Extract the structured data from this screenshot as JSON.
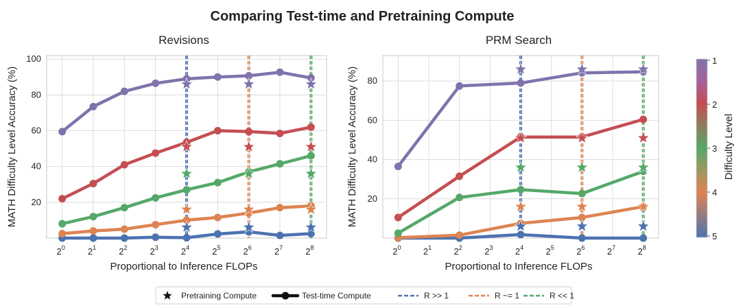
{
  "title": "Comparing Test-time and Pretraining Compute",
  "colors": {
    "d1": "#8073ac",
    "d2": "#c44e52",
    "d3": "#55a868",
    "d4": "#dd8452",
    "d5": "#4c72b0",
    "r_gg1": "#4c72b0",
    "r_eq1": "#dd8452",
    "r_ll1": "#55a868",
    "grid": "#dcdcdc",
    "frame": "#c8c8c8"
  },
  "chart_data": [
    {
      "type": "line",
      "title": "Revisions",
      "xlabel": "Proportional to Inference FLOPs",
      "ylabel": "MATH Difficulty Level Accuracy (%)",
      "x": [
        0,
        1,
        2,
        3,
        4,
        5,
        6,
        7,
        8
      ],
      "x_tick_base": "2",
      "x_tick_exponents": [
        "0",
        "1",
        "2",
        "3",
        "4",
        "5",
        "6",
        "7",
        "8"
      ],
      "xlim": [
        -0.5,
        8.5
      ],
      "ylim": [
        0,
        102
      ],
      "yticks": [
        20,
        40,
        60,
        80,
        100
      ],
      "grid": true,
      "series": [
        {
          "level": 1,
          "color_key": "d1",
          "values": [
            59.5,
            73.5,
            82,
            86.5,
            89,
            90,
            90.7,
            92.7,
            89.5
          ]
        },
        {
          "level": 2,
          "color_key": "d2",
          "values": [
            22,
            30.5,
            41,
            47.5,
            53.5,
            60,
            59.5,
            58.5,
            62
          ]
        },
        {
          "level": 3,
          "color_key": "d3",
          "values": [
            8,
            12,
            17,
            22.5,
            27,
            31,
            37,
            41.5,
            46
          ]
        },
        {
          "level": 4,
          "color_key": "d4",
          "values": [
            2.5,
            4,
            5,
            7.5,
            10,
            11.5,
            14,
            17,
            18
          ]
        },
        {
          "level": 5,
          "color_key": "d5",
          "values": [
            0,
            0,
            0,
            0.5,
            0.2,
            2.3,
            3.5,
            1.5,
            2.5
          ]
        }
      ],
      "pretraining_markers": [
        {
          "x": 4,
          "ratio": "r_gg1",
          "values": [
            86,
            51,
            36,
            16,
            6
          ]
        },
        {
          "x": 6,
          "ratio": "r_eq1",
          "values": [
            86,
            51,
            36,
            16,
            6
          ]
        },
        {
          "x": 8,
          "ratio": "r_ll1",
          "values": [
            86,
            51,
            36,
            16,
            6
          ]
        }
      ],
      "vlines": [
        {
          "x": 4,
          "ratio": "r_gg1"
        },
        {
          "x": 6,
          "ratio": "r_eq1"
        },
        {
          "x": 8,
          "ratio": "r_ll1"
        }
      ]
    },
    {
      "type": "line",
      "title": "PRM Search",
      "xlabel": "Proportional to Inference FLOPs",
      "ylabel": "MATH Difficulty Level Accuracy (%)",
      "x": [
        0,
        2,
        4,
        6,
        8
      ],
      "x_tick_base": "2",
      "x_tick_exponents": [
        "0",
        "1",
        "2",
        "3",
        "4",
        "5",
        "6",
        "7",
        "8"
      ],
      "xlim": [
        -0.5,
        8.5
      ],
      "ylim": [
        0,
        93
      ],
      "yticks": [
        20,
        40,
        60,
        80
      ],
      "grid": true,
      "series": [
        {
          "level": 1,
          "color_key": "d1",
          "values": [
            36.5,
            77.5,
            79,
            84.2,
            84.7
          ]
        },
        {
          "level": 2,
          "color_key": "d2",
          "values": [
            10.5,
            31.5,
            51.5,
            51.5,
            60.5
          ]
        },
        {
          "level": 3,
          "color_key": "d3",
          "values": [
            2.5,
            20.7,
            24.7,
            22.7,
            34
          ]
        },
        {
          "level": 4,
          "color_key": "d4",
          "values": [
            0.2,
            1.5,
            7.5,
            10.5,
            16
          ]
        },
        {
          "level": 5,
          "color_key": "d5",
          "values": [
            0,
            0,
            1.8,
            0,
            0
          ]
        }
      ],
      "pretraining_markers": [
        {
          "x": 4,
          "ratio": "r_gg1",
          "values": [
            86,
            51,
            36,
            16,
            6
          ]
        },
        {
          "x": 6,
          "ratio": "r_eq1",
          "values": [
            86,
            51,
            36,
            16,
            6
          ]
        },
        {
          "x": 8,
          "ratio": "r_ll1",
          "values": [
            86,
            51,
            36,
            16,
            6
          ]
        }
      ],
      "vlines": [
        {
          "x": 4,
          "ratio": "r_gg1"
        },
        {
          "x": 6,
          "ratio": "r_eq1"
        },
        {
          "x": 8,
          "ratio": "r_ll1"
        }
      ]
    }
  ],
  "colorbar": {
    "label": "Difficulty Level",
    "ticks": [
      "1",
      "2",
      "3",
      "4",
      "5"
    ],
    "gradient": [
      "#8073ac",
      "#a5619a",
      "#c44e52",
      "#8c7c5d",
      "#55a868",
      "#9e9760",
      "#dd8452",
      "#957b81",
      "#4c72b0"
    ]
  },
  "legend": {
    "items": [
      {
        "label": "Pretraining Compute",
        "kind": "star"
      },
      {
        "label": "Test-time Compute",
        "kind": "line-dot"
      },
      {
        "label": "R >> 1",
        "kind": "dash",
        "color_key": "r_gg1"
      },
      {
        "label": "R ~= 1",
        "kind": "dash",
        "color_key": "r_eq1"
      },
      {
        "label": "R << 1",
        "kind": "dash",
        "color_key": "r_ll1"
      }
    ]
  }
}
